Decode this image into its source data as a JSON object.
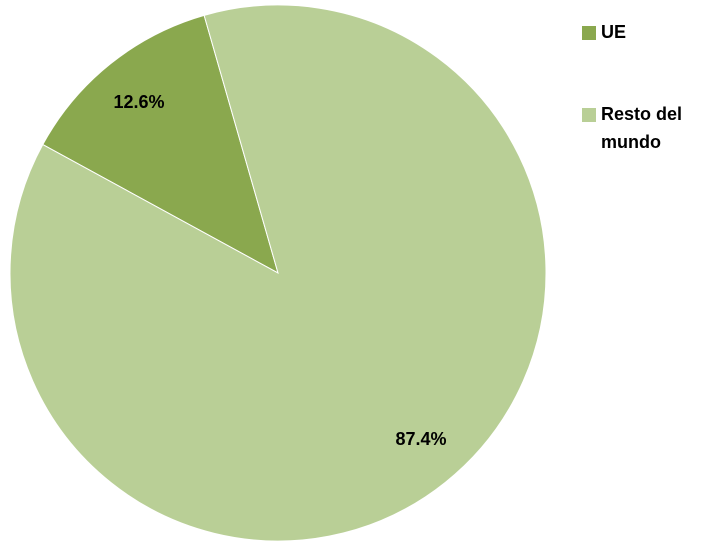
{
  "chart_data": {
    "type": "pie",
    "title": "",
    "series": [
      {
        "values": [
          12.6,
          87.4
        ]
      }
    ],
    "categories": [
      "UE",
      "Resto del mundo"
    ],
    "slice_labels": [
      "12.6%",
      "87.4%"
    ],
    "legend": {
      "placement": "right",
      "entries": [
        {
          "label_lines": [
            "UE"
          ],
          "color": "#8aa84e"
        },
        {
          "label_lines": [
            "Resto del",
            "mundo"
          ],
          "color": "#b9cf96"
        }
      ]
    },
    "colors": [
      "#8aa84e",
      "#b9cf96"
    ]
  }
}
